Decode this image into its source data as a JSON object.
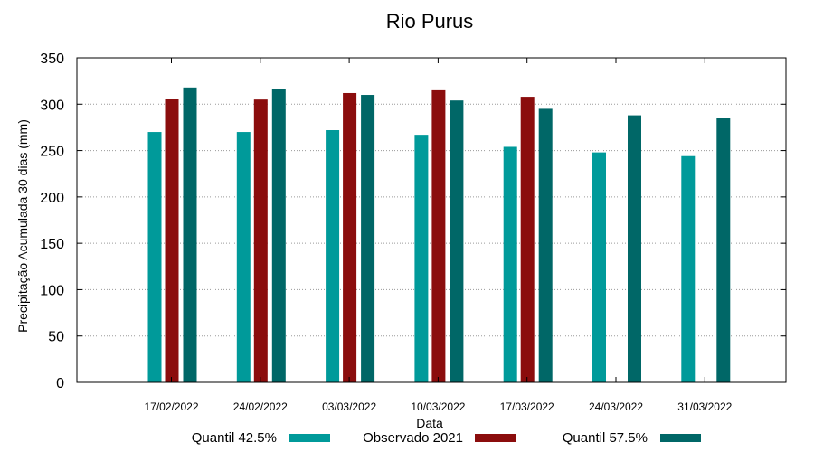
{
  "chart_data": {
    "type": "bar",
    "title": "Rio Purus",
    "xlabel": "Data",
    "ylabel": "Precipitação Acumulada 30 dias (mm)",
    "ylim": [
      0,
      350
    ],
    "yticks": [
      "0",
      "50",
      "100",
      "150",
      "200",
      "250",
      "300",
      "350"
    ],
    "grid": true,
    "legend_position": "bottom",
    "categories": [
      "17/02/2022",
      "24/02/2022",
      "03/03/2022",
      "10/03/2022",
      "17/03/2022",
      "24/03/2022",
      "31/03/2022"
    ],
    "series": [
      {
        "name": "Quantil 42.5%",
        "color": "#009a9a",
        "values": [
          270,
          270,
          272,
          267,
          254,
          248,
          244
        ]
      },
      {
        "name": "Observado 2021",
        "color": "#8b0d0d",
        "values": [
          306,
          305,
          312,
          315,
          308,
          null,
          null
        ]
      },
      {
        "name": "Quantil 57.5%",
        "color": "#006767",
        "values": [
          318,
          316,
          310,
          304,
          295,
          288,
          285
        ]
      }
    ]
  }
}
